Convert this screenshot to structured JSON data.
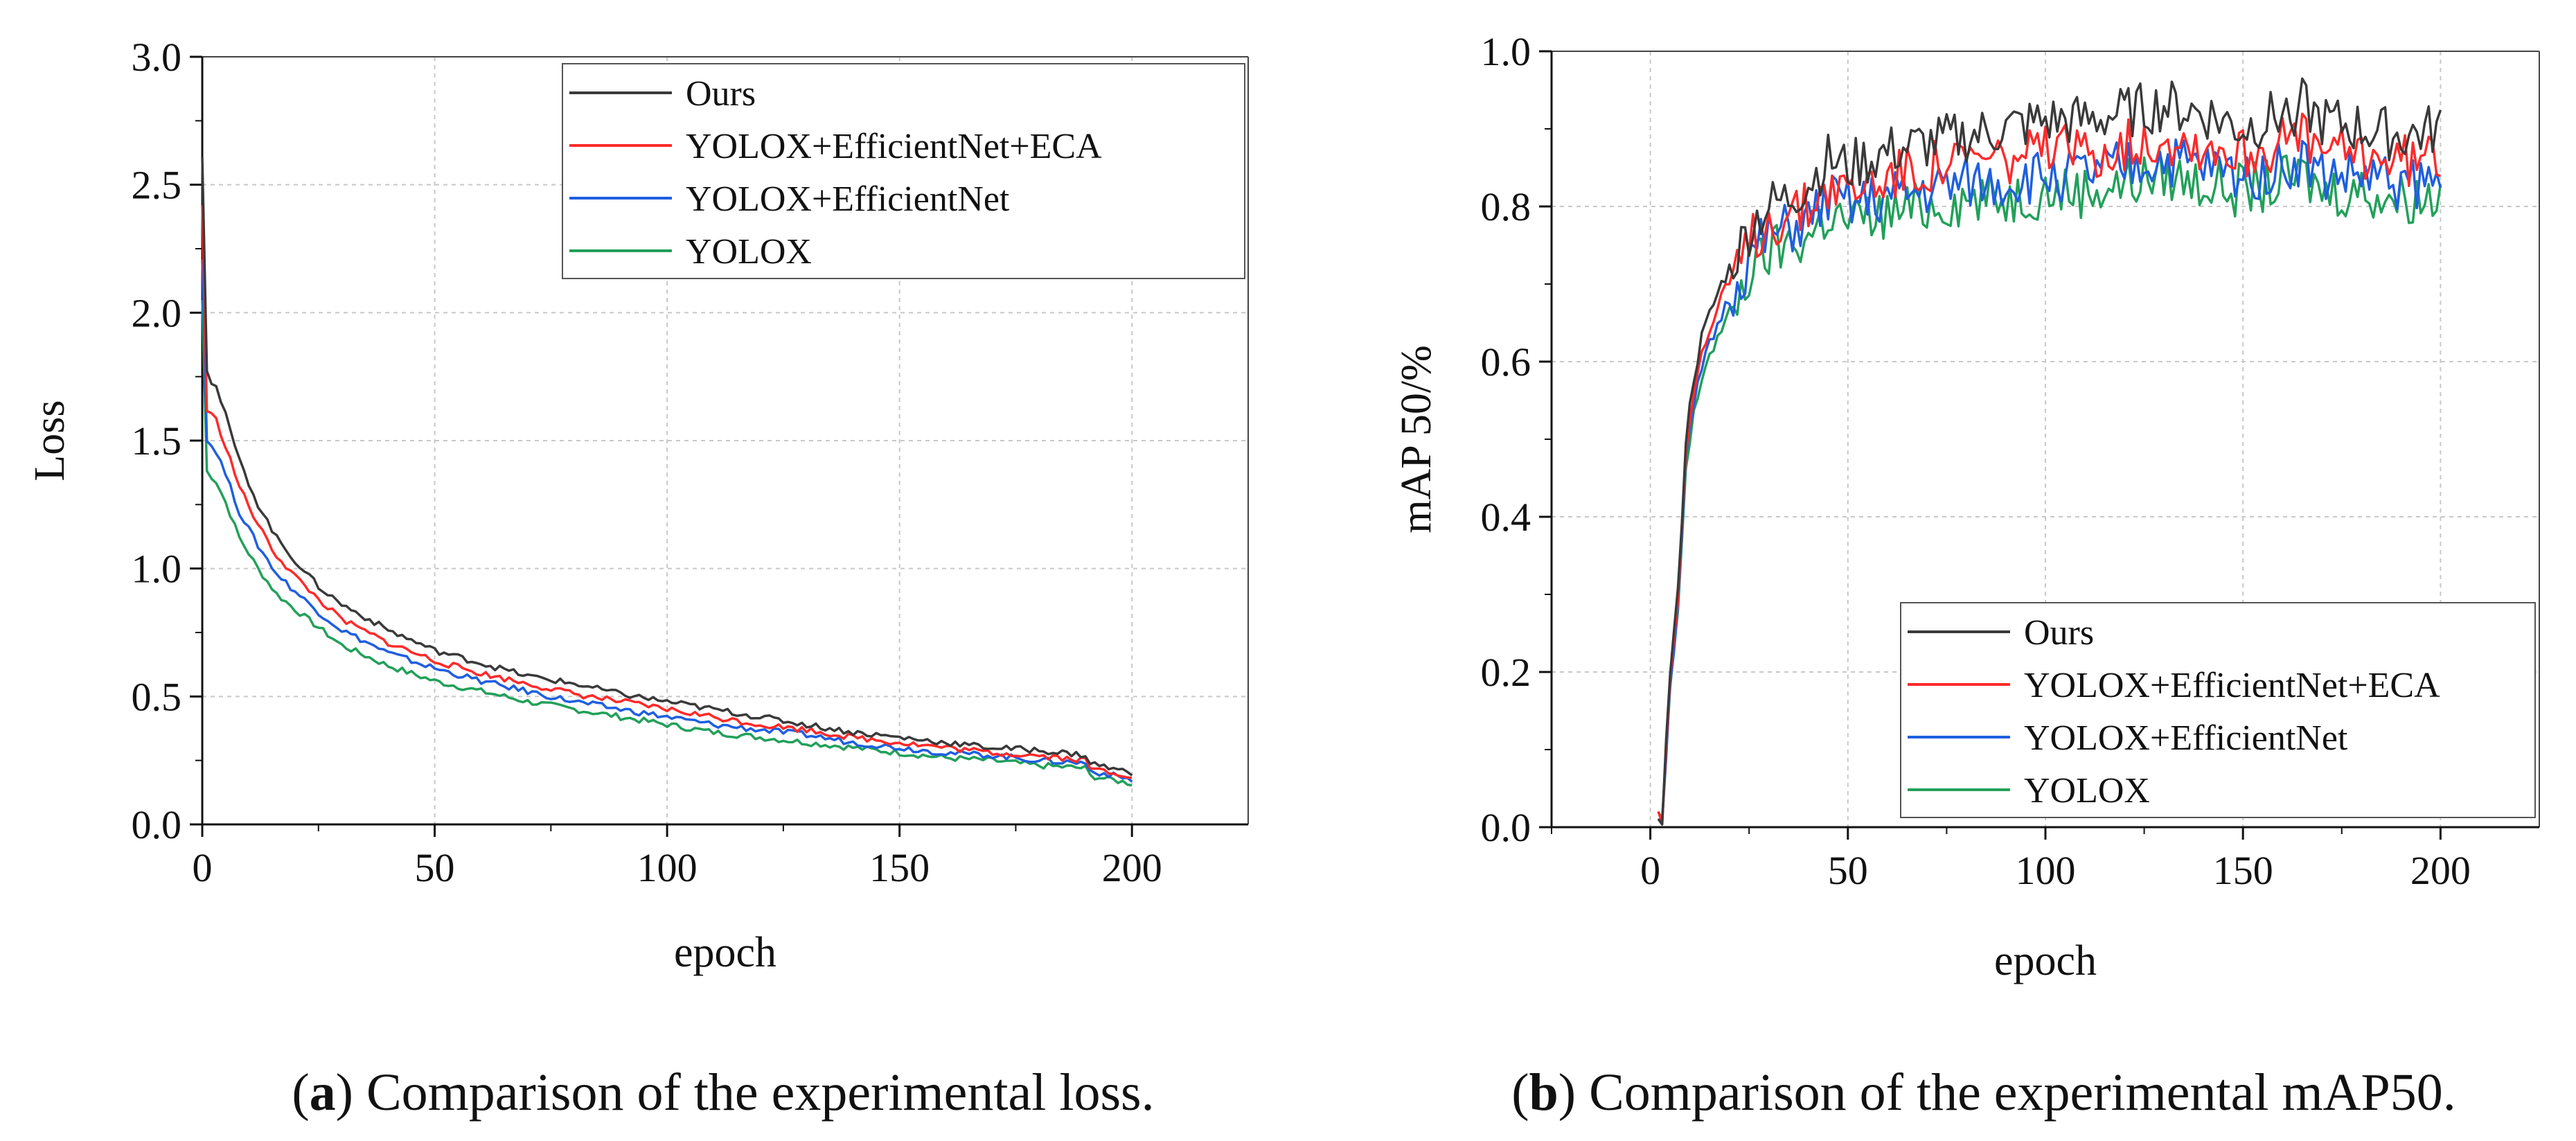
{
  "chart_data": [
    {
      "type": "line",
      "caption_label": "a",
      "caption_text": "Comparison of the experimental loss.",
      "title": "",
      "xlabel": "epoch",
      "ylabel": "Loss",
      "xlim": [
        0,
        225
      ],
      "ylim": [
        0,
        3.0
      ],
      "xticks": [
        0,
        50,
        100,
        150,
        200
      ],
      "xtick_labels": [
        "0",
        "50",
        "100",
        "150",
        "200"
      ],
      "yticks": [
        0,
        0.5,
        1.0,
        1.5,
        2.0,
        2.5,
        3.0
      ],
      "ytick_labels": [
        "0.0",
        "0.5",
        "1.0",
        "1.5",
        "2.0",
        "2.5",
        "3.0"
      ],
      "grid": true,
      "legend_position": "top-right",
      "series": [
        {
          "name": "Ours",
          "color": "#3a3a3a",
          "x": [
            0,
            1,
            2,
            3,
            5,
            8,
            12,
            16,
            20,
            25,
            30,
            40,
            50,
            60,
            70,
            80,
            90,
            100,
            110,
            120,
            130,
            140,
            150,
            160,
            170,
            180,
            190,
            191,
            200
          ],
          "y": [
            2.62,
            1.78,
            1.73,
            1.71,
            1.6,
            1.42,
            1.25,
            1.12,
            1.03,
            0.93,
            0.86,
            0.76,
            0.68,
            0.63,
            0.58,
            0.55,
            0.51,
            0.48,
            0.45,
            0.42,
            0.39,
            0.36,
            0.34,
            0.32,
            0.3,
            0.29,
            0.27,
            0.24,
            0.2
          ]
        },
        {
          "name": "YOLOX+EfficientNet+ECA",
          "color": "#ff2a2a",
          "x": [
            0,
            1,
            2,
            3,
            5,
            8,
            12,
            16,
            20,
            25,
            30,
            40,
            50,
            60,
            70,
            80,
            90,
            100,
            110,
            120,
            130,
            140,
            150,
            160,
            170,
            180,
            190,
            191,
            200
          ],
          "y": [
            2.42,
            1.62,
            1.6,
            1.58,
            1.48,
            1.32,
            1.17,
            1.05,
            0.97,
            0.88,
            0.8,
            0.71,
            0.64,
            0.59,
            0.55,
            0.51,
            0.48,
            0.45,
            0.42,
            0.39,
            0.37,
            0.34,
            0.32,
            0.3,
            0.28,
            0.27,
            0.25,
            0.22,
            0.19
          ]
        },
        {
          "name": "YOLOX+EfficientNet",
          "color": "#1f5fe0",
          "x": [
            0,
            1,
            2,
            3,
            5,
            8,
            12,
            16,
            20,
            25,
            30,
            40,
            50,
            60,
            70,
            80,
            90,
            100,
            110,
            120,
            130,
            140,
            150,
            160,
            170,
            180,
            190,
            191,
            200
          ],
          "y": [
            2.22,
            1.5,
            1.48,
            1.46,
            1.37,
            1.22,
            1.09,
            0.98,
            0.91,
            0.83,
            0.76,
            0.67,
            0.61,
            0.56,
            0.52,
            0.48,
            0.45,
            0.42,
            0.39,
            0.37,
            0.35,
            0.32,
            0.3,
            0.28,
            0.27,
            0.25,
            0.24,
            0.21,
            0.175
          ]
        },
        {
          "name": "YOLOX",
          "color": "#22a05a",
          "x": [
            0,
            1,
            2,
            3,
            5,
            8,
            12,
            16,
            20,
            25,
            30,
            40,
            50,
            60,
            70,
            80,
            90,
            100,
            110,
            120,
            130,
            140,
            150,
            160,
            170,
            180,
            190,
            191,
            200
          ],
          "y": [
            2.05,
            1.38,
            1.36,
            1.34,
            1.26,
            1.12,
            1.0,
            0.9,
            0.84,
            0.77,
            0.7,
            0.62,
            0.56,
            0.52,
            0.48,
            0.45,
            0.42,
            0.39,
            0.36,
            0.34,
            0.32,
            0.3,
            0.28,
            0.26,
            0.25,
            0.23,
            0.22,
            0.19,
            0.16
          ]
        }
      ]
    },
    {
      "type": "line",
      "caption_label": "b",
      "caption_text": "Comparison of the experimental mAP50.",
      "title": "",
      "xlabel": "epoch",
      "ylabel": "mAP 50/%",
      "xlim": [
        -25,
        225
      ],
      "ylim": [
        0,
        1.0
      ],
      "xticks": [
        0,
        50,
        100,
        150,
        200
      ],
      "xtick_labels": [
        "0",
        "50",
        "100",
        "150",
        "200"
      ],
      "yticks": [
        0,
        0.2,
        0.4,
        0.6,
        0.8,
        1.0
      ],
      "ytick_labels": [
        "0.0",
        "0.2",
        "0.4",
        "0.6",
        "0.8",
        "1.0"
      ],
      "grid": true,
      "legend_position": "bottom-right",
      "series": [
        {
          "name": "Ours",
          "color": "#3a3a3a",
          "x": [
            2,
            3,
            5,
            7,
            9,
            11,
            13,
            15,
            18,
            22,
            26,
            30,
            35,
            40,
            45,
            50,
            60,
            70,
            80,
            90,
            100,
            110,
            120,
            130,
            140,
            150,
            160,
            165,
            170,
            180,
            190,
            200
          ],
          "y": [
            0.015,
            0.012,
            0.2,
            0.3,
            0.5,
            0.58,
            0.63,
            0.66,
            0.7,
            0.74,
            0.78,
            0.8,
            0.81,
            0.83,
            0.86,
            0.85,
            0.87,
            0.88,
            0.89,
            0.9,
            0.91,
            0.91,
            0.92,
            0.93,
            0.92,
            0.9,
            0.92,
            0.93,
            0.91,
            0.9,
            0.89,
            0.9
          ]
        },
        {
          "name": "YOLOX+EfficientNet+ECA",
          "color": "#ff2a2a",
          "x": [
            2,
            3,
            5,
            7,
            9,
            11,
            13,
            15,
            18,
            22,
            26,
            30,
            35,
            40,
            45,
            50,
            60,
            70,
            80,
            90,
            100,
            110,
            120,
            130,
            140,
            150,
            160,
            165,
            170,
            180,
            190,
            200
          ],
          "y": [
            0.015,
            0.012,
            0.19,
            0.3,
            0.49,
            0.56,
            0.61,
            0.64,
            0.68,
            0.72,
            0.76,
            0.78,
            0.79,
            0.8,
            0.83,
            0.82,
            0.84,
            0.85,
            0.86,
            0.86,
            0.87,
            0.87,
            0.88,
            0.89,
            0.88,
            0.87,
            0.88,
            0.89,
            0.87,
            0.87,
            0.86,
            0.865
          ]
        },
        {
          "name": "YOLOX+EfficientNet",
          "color": "#1f5fe0",
          "x": [
            2,
            3,
            5,
            7,
            9,
            11,
            13,
            15,
            18,
            22,
            26,
            30,
            35,
            40,
            45,
            50,
            60,
            70,
            80,
            90,
            100,
            110,
            120,
            130,
            140,
            150,
            160,
            165,
            170,
            180,
            190,
            200
          ],
          "y": [
            0.015,
            0.012,
            0.18,
            0.29,
            0.47,
            0.54,
            0.59,
            0.62,
            0.66,
            0.7,
            0.74,
            0.76,
            0.77,
            0.78,
            0.81,
            0.8,
            0.81,
            0.82,
            0.83,
            0.83,
            0.84,
            0.84,
            0.85,
            0.86,
            0.85,
            0.84,
            0.85,
            0.86,
            0.84,
            0.84,
            0.83,
            0.83
          ]
        },
        {
          "name": "YOLOX",
          "color": "#22a05a",
          "x": [
            2,
            3,
            5,
            7,
            9,
            11,
            13,
            15,
            18,
            22,
            26,
            30,
            35,
            40,
            45,
            50,
            60,
            70,
            80,
            90,
            100,
            110,
            120,
            130,
            140,
            150,
            160,
            165,
            170,
            180,
            190,
            200
          ],
          "y": [
            0.015,
            0.012,
            0.17,
            0.28,
            0.46,
            0.53,
            0.58,
            0.61,
            0.64,
            0.68,
            0.72,
            0.74,
            0.75,
            0.76,
            0.79,
            0.78,
            0.79,
            0.8,
            0.81,
            0.81,
            0.82,
            0.82,
            0.83,
            0.84,
            0.83,
            0.82,
            0.83,
            0.84,
            0.82,
            0.82,
            0.81,
            0.815
          ]
        }
      ]
    }
  ]
}
